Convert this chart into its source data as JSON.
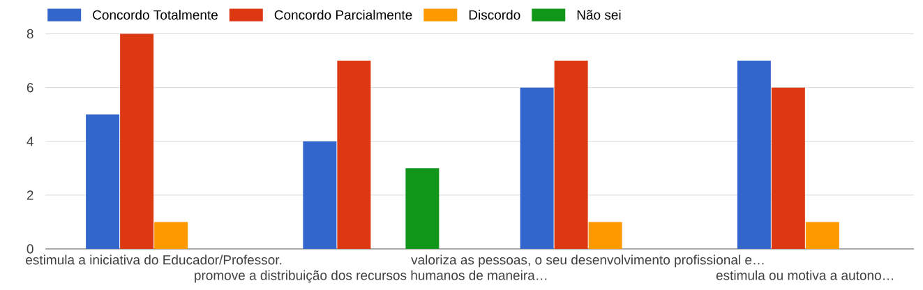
{
  "chart_data": {
    "type": "bar",
    "categories": [
      "estimula a iniciativa do Educador/Professor.",
      "promove a distribuição dos recursos humanos de maneira…",
      "valoriza as pessoas, o seu desenvolvimento profissional e…",
      "estimula ou motiva a autono…"
    ],
    "series": [
      {
        "name": "Concordo Totalmente",
        "color": "#3366cc",
        "values": [
          5,
          4,
          6,
          7
        ]
      },
      {
        "name": "Concordo Parcialmente",
        "color": "#dc3912",
        "values": [
          8,
          7,
          7,
          6
        ]
      },
      {
        "name": "Discordo",
        "color": "#ff9900",
        "values": [
          1,
          0,
          1,
          1
        ]
      },
      {
        "name": "Não sei",
        "color": "#109618",
        "values": [
          0,
          3,
          0,
          0
        ]
      }
    ],
    "ylim": [
      0,
      9
    ],
    "yticks": [
      0,
      2,
      4,
      6,
      8
    ],
    "grid": "y",
    "legend": "top left"
  }
}
